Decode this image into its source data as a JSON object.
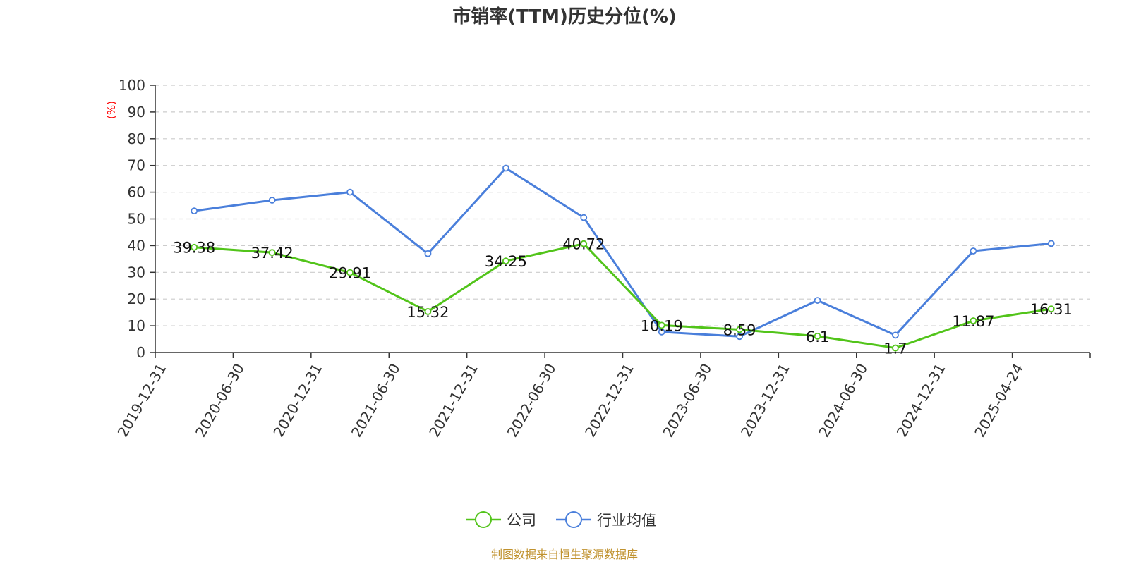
{
  "chart_data": {
    "type": "line",
    "title": "市销率(TTM)历史分位(%)",
    "ylabel": "(%)",
    "xlabel": "",
    "ylim": [
      0,
      100
    ],
    "yticks": [
      0,
      10,
      20,
      30,
      40,
      50,
      60,
      70,
      80,
      90,
      100
    ],
    "grid": true,
    "legend_position": "bottom",
    "categories": [
      "2019-12-31",
      "2020-06-30",
      "2020-12-31",
      "2021-06-30",
      "2021-12-31",
      "2022-06-30",
      "2022-12-31",
      "2023-06-30",
      "2023-12-31",
      "2024-06-30",
      "2024-12-31",
      "2025-04-24"
    ],
    "series": [
      {
        "name": "公司",
        "color": "#52c41a",
        "values": [
          39.38,
          37.42,
          29.91,
          15.32,
          34.25,
          40.72,
          10.19,
          8.59,
          6.1,
          1.7,
          11.87,
          16.31
        ],
        "labels": [
          "39.38",
          "37.42",
          "29.91",
          "15.32",
          "34.25",
          "40.72",
          "10.19",
          "8.59",
          "6.1",
          "1.7",
          "11.87",
          "16.31"
        ]
      },
      {
        "name": "行业均值",
        "color": "#4a7fdb",
        "values": [
          53,
          57,
          60,
          37,
          69,
          50.5,
          7.7,
          6,
          19.5,
          6.5,
          38,
          40.8
        ]
      }
    ],
    "source": "制图数据来自恒生聚源数据库"
  }
}
